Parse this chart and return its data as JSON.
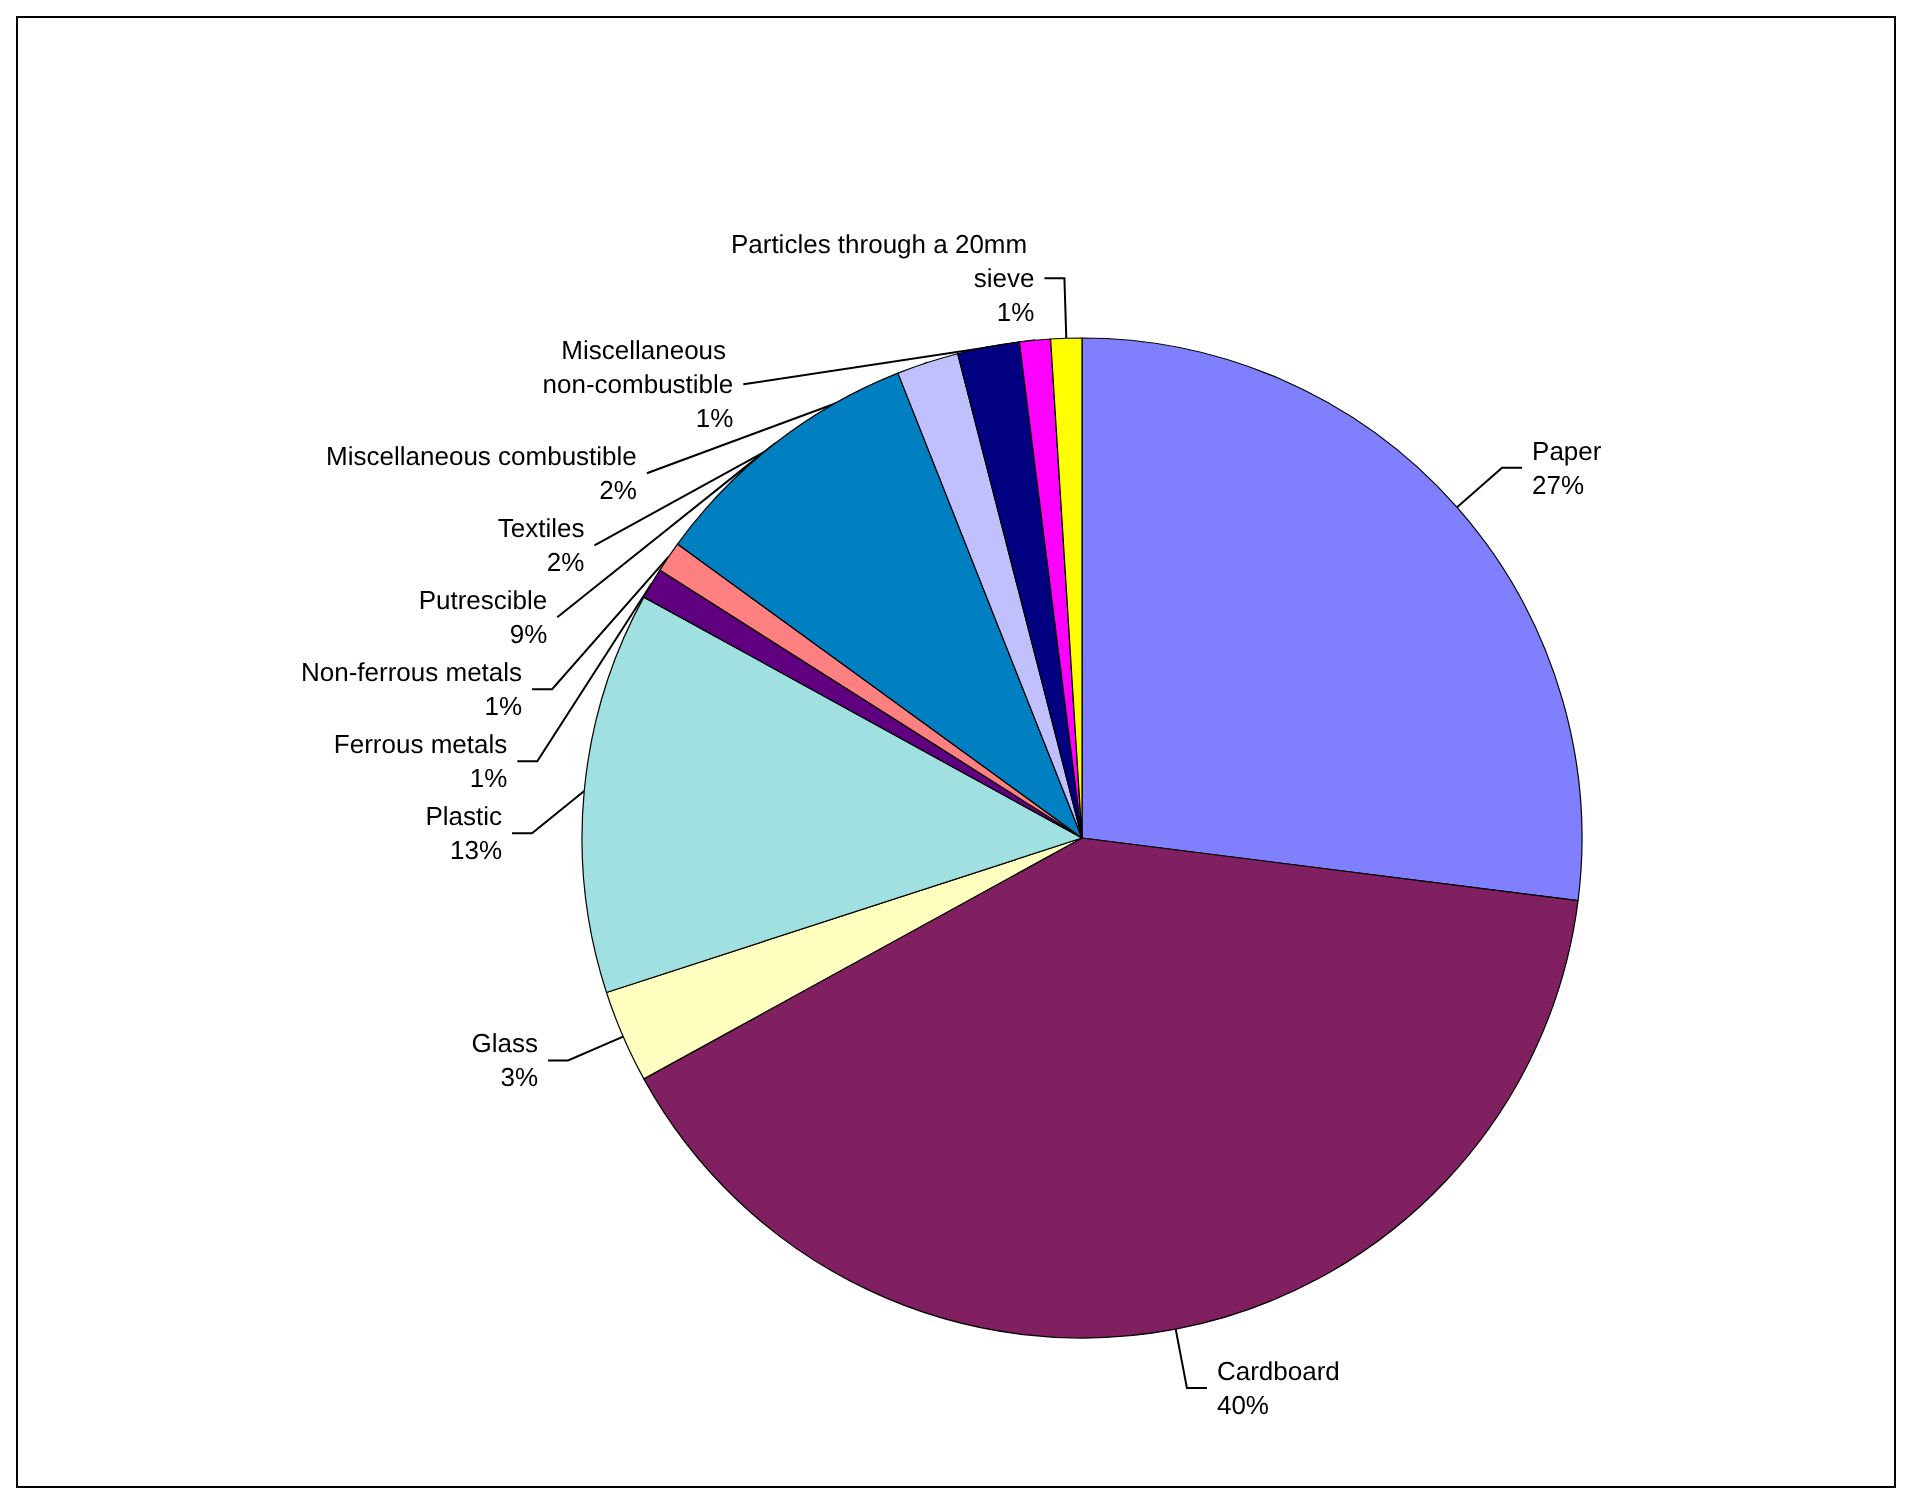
{
  "chart_data": {
    "type": "pie",
    "categories": [
      "Paper",
      "Cardboard",
      "Glass",
      "Plastic",
      "Ferrous metals",
      "Non-ferrous metals",
      "Putrescible",
      "Textiles",
      "Miscellaneous combustible",
      "Miscellaneous non-combustible",
      "Particles through a 20mm sieve"
    ],
    "values": [
      27,
      40,
      3,
      13,
      1,
      1,
      9,
      2,
      2,
      1,
      1
    ],
    "colors": [
      "#8080ff",
      "#802060",
      "#ffffc0",
      "#a0e0e0",
      "#600080",
      "#ff8080",
      "#0080c0",
      "#c0c0ff",
      "#000080",
      "#ff00ff",
      "#ffff00"
    ],
    "value_labels": [
      "27%",
      "40%",
      "3%",
      "13%",
      "1%",
      "1%",
      "9%",
      "2%",
      "2%",
      "1%",
      "1%"
    ]
  }
}
